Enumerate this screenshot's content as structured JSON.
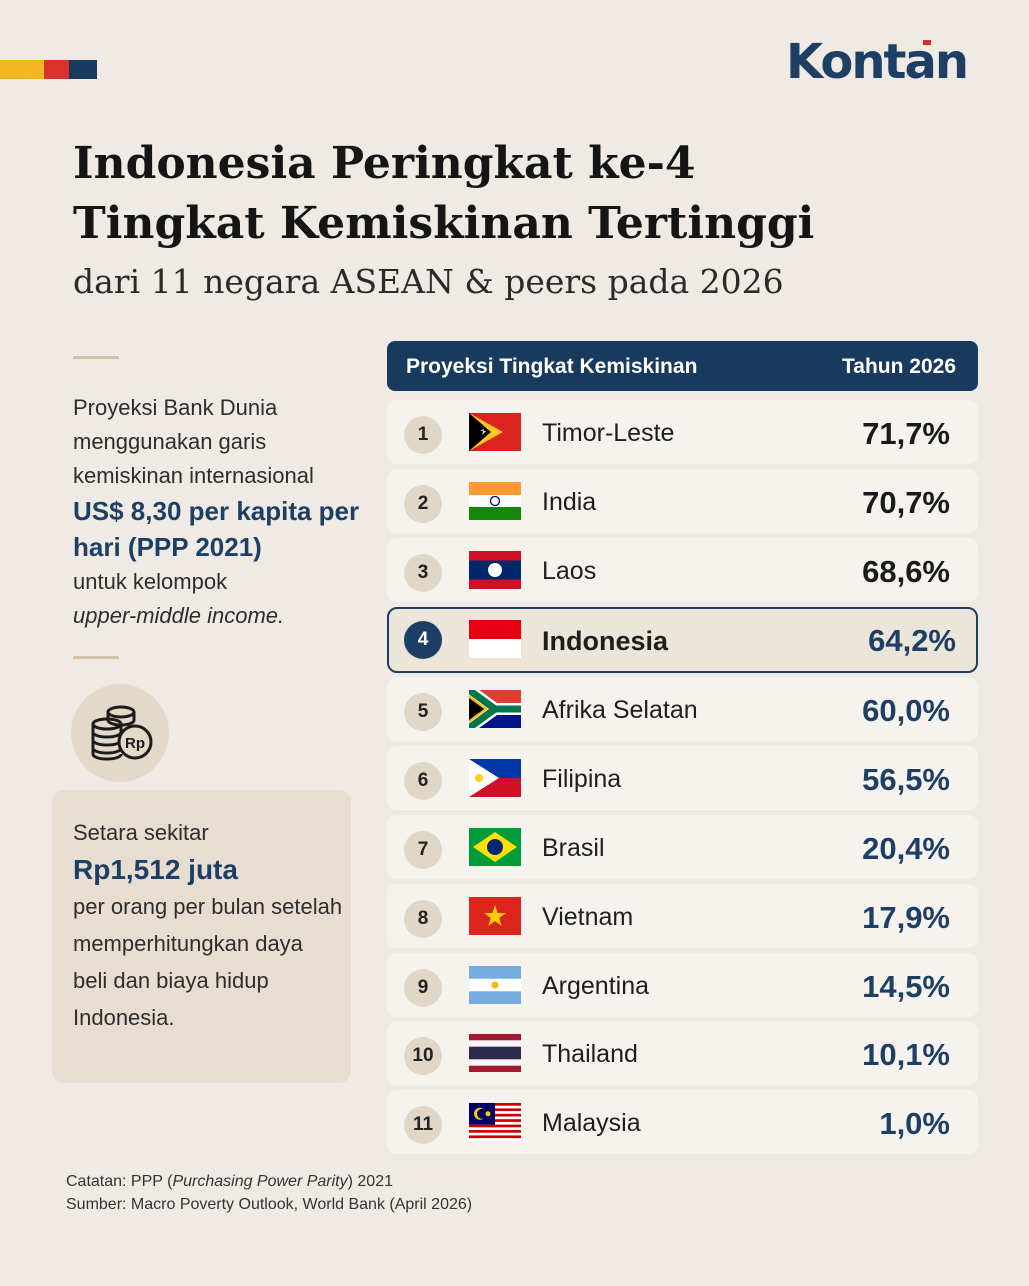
{
  "brand": {
    "logo": "Kontan",
    "colors": {
      "accent_yellow": "#f2b722",
      "accent_red": "#d9312b",
      "navy": "#1d3f66",
      "background": "#efebe4"
    }
  },
  "header": {
    "title_line1": "Indonesia Peringkat ke-4",
    "title_line2": "Tingkat Kemiskinan Tertinggi",
    "subtitle": "dari 11 negara ASEAN & peers pada 2026"
  },
  "sidebar": {
    "text1": "Proyeksi Bank Dunia menggunakan garis kemiskinan internasional",
    "text_emphasis": "US$ 8,30 per kapita per hari (PPP 2021)",
    "text2": "untuk kelompok",
    "text_italic": "upper-middle income.",
    "icon": "coins-rupiah-icon",
    "coin_label": "Rp",
    "box_line1": "Setara sekitar",
    "box_amount": "Rp1,512 juta",
    "box_line2": "per orang per bulan setelah memperhitungkan daya beli dan biaya hidup Indonesia."
  },
  "chart_data": {
    "type": "table",
    "columns": [
      "Proyeksi Tingkat Kemiskinan",
      "Tahun 2026"
    ],
    "rows": [
      {
        "rank": "1",
        "country": "Timor-Leste",
        "value": "71,7%",
        "flag": "timor-leste-flag"
      },
      {
        "rank": "2",
        "country": "India",
        "value": "70,7%",
        "flag": "india-flag"
      },
      {
        "rank": "3",
        "country": "Laos",
        "value": "68,6%",
        "flag": "laos-flag"
      },
      {
        "rank": "4",
        "country": "Indonesia",
        "value": "64,2%",
        "flag": "indonesia-flag",
        "highlight": true
      },
      {
        "rank": "5",
        "country": "Afrika Selatan",
        "value": "60,0%",
        "flag": "south-africa-flag"
      },
      {
        "rank": "6",
        "country": "Filipina",
        "value": "56,5%",
        "flag": "philippines-flag"
      },
      {
        "rank": "7",
        "country": "Brasil",
        "value": "20,4%",
        "flag": "brazil-flag"
      },
      {
        "rank": "8",
        "country": "Vietnam",
        "value": "17,9%",
        "flag": "vietnam-flag"
      },
      {
        "rank": "9",
        "country": "Argentina",
        "value": "14,5%",
        "flag": "argentina-flag"
      },
      {
        "rank": "10",
        "country": "Thailand",
        "value": "10,1%",
        "flag": "thailand-flag"
      },
      {
        "rank": "11",
        "country": "Malaysia",
        "value": "1,0%",
        "flag": "malaysia-flag"
      }
    ]
  },
  "footer": {
    "note_prefix": "Catatan: PPP (",
    "note_italic": "Purchasing Power Parity",
    "note_suffix": ") 2021",
    "source": "Sumber: Macro Poverty Outlook, World Bank (April 2026)"
  }
}
